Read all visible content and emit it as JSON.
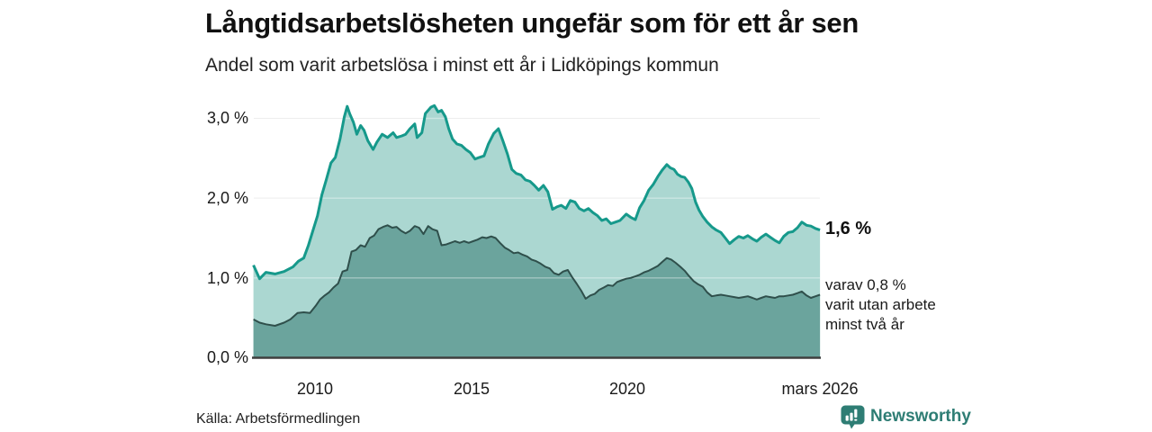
{
  "header": {
    "title": "Långtidsarbetslösheten ungefär som för ett år sen",
    "subtitle": "Andel som varit arbetslösa i minst ett år i Lidköpings kommun"
  },
  "annotations": {
    "series1_end_value": "1,6 %",
    "series2_end_lines": [
      "varav 0,8 %",
      "varit utan arbete",
      "minst två år"
    ]
  },
  "footer": {
    "source": "Källa: Arbetsförmedlingen",
    "brand": "Newsworthy",
    "logo_icon": "bar-chart-bubble-icon"
  },
  "colors": {
    "series1_line": "#16998b",
    "series1_fill": "#abd7d1",
    "series2_line": "#2f4f4b",
    "series2_fill": "#6ba49d",
    "grid": "#e2e2e2",
    "grid_overlay": "rgba(255,255,255,0.38)",
    "baseline": "#3f3f3f",
    "brand_teal": "#2e7d74"
  },
  "chart_data": {
    "type": "area",
    "title": "Långtidsarbetslösheten ungefär som för ett år sen",
    "subtitle": "Andel som varit arbetslösa i minst ett år i Lidköpings kommun",
    "xlabel": "",
    "ylabel": "",
    "xlim": [
      2008.0,
      2026.17
    ],
    "ylim": [
      0,
      3.32
    ],
    "grid": true,
    "legend_position": "right-annotations",
    "x_ticks": [
      {
        "label": "2010",
        "year": 2010
      },
      {
        "label": "2015",
        "year": 2015
      },
      {
        "label": "2020",
        "year": 2020
      },
      {
        "label": "mars 2026",
        "year": 2026.17
      }
    ],
    "y_ticks": [
      {
        "label": "0,0 %",
        "value": 0
      },
      {
        "label": "1,0 %",
        "value": 1
      },
      {
        "label": "2,0 %",
        "value": 2
      },
      {
        "label": "3,0 %",
        "value": 3
      }
    ],
    "series": [
      {
        "name": "Andel arbetslösa minst ett år",
        "end_label": "1,6 %",
        "line_color": "#16998b",
        "fill_color": "#abd7d1",
        "line_width": 3,
        "points": [
          [
            2008.03,
            1.16
          ],
          [
            2008.23,
            0.99
          ],
          [
            2008.43,
            1.07
          ],
          [
            2008.72,
            1.05
          ],
          [
            2009.01,
            1.08
          ],
          [
            2009.3,
            1.14
          ],
          [
            2009.47,
            1.21
          ],
          [
            2009.64,
            1.25
          ],
          [
            2009.79,
            1.41
          ],
          [
            2009.93,
            1.59
          ],
          [
            2010.08,
            1.78
          ],
          [
            2010.22,
            2.04
          ],
          [
            2010.36,
            2.23
          ],
          [
            2010.51,
            2.44
          ],
          [
            2010.65,
            2.51
          ],
          [
            2010.8,
            2.74
          ],
          [
            2010.94,
            3.02
          ],
          [
            2011.03,
            3.15
          ],
          [
            2011.11,
            3.06
          ],
          [
            2011.23,
            2.95
          ],
          [
            2011.34,
            2.8
          ],
          [
            2011.46,
            2.91
          ],
          [
            2011.57,
            2.85
          ],
          [
            2011.69,
            2.72
          ],
          [
            2011.86,
            2.61
          ],
          [
            2011.98,
            2.7
          ],
          [
            2012.15,
            2.8
          ],
          [
            2012.32,
            2.76
          ],
          [
            2012.5,
            2.82
          ],
          [
            2012.61,
            2.76
          ],
          [
            2012.78,
            2.78
          ],
          [
            2012.9,
            2.8
          ],
          [
            2013.04,
            2.87
          ],
          [
            2013.19,
            2.93
          ],
          [
            2013.27,
            2.76
          ],
          [
            2013.42,
            2.82
          ],
          [
            2013.53,
            3.06
          ],
          [
            2013.71,
            3.14
          ],
          [
            2013.82,
            3.16
          ],
          [
            2013.94,
            3.08
          ],
          [
            2014.05,
            3.1
          ],
          [
            2014.17,
            3.02
          ],
          [
            2014.28,
            2.87
          ],
          [
            2014.4,
            2.74
          ],
          [
            2014.54,
            2.68
          ],
          [
            2014.69,
            2.66
          ],
          [
            2014.83,
            2.61
          ],
          [
            2014.97,
            2.57
          ],
          [
            2015.12,
            2.49
          ],
          [
            2015.26,
            2.51
          ],
          [
            2015.41,
            2.53
          ],
          [
            2015.55,
            2.68
          ],
          [
            2015.72,
            2.81
          ],
          [
            2015.87,
            2.87
          ],
          [
            2016.01,
            2.72
          ],
          [
            2016.16,
            2.55
          ],
          [
            2016.3,
            2.36
          ],
          [
            2016.44,
            2.31
          ],
          [
            2016.59,
            2.29
          ],
          [
            2016.73,
            2.23
          ],
          [
            2016.88,
            2.21
          ],
          [
            2017.02,
            2.16
          ],
          [
            2017.16,
            2.1
          ],
          [
            2017.31,
            2.16
          ],
          [
            2017.45,
            2.08
          ],
          [
            2017.6,
            1.86
          ],
          [
            2017.74,
            1.89
          ],
          [
            2017.88,
            1.91
          ],
          [
            2018.03,
            1.87
          ],
          [
            2018.17,
            1.97
          ],
          [
            2018.32,
            1.95
          ],
          [
            2018.46,
            1.87
          ],
          [
            2018.61,
            1.84
          ],
          [
            2018.75,
            1.87
          ],
          [
            2018.89,
            1.82
          ],
          [
            2019.04,
            1.78
          ],
          [
            2019.18,
            1.72
          ],
          [
            2019.32,
            1.74
          ],
          [
            2019.47,
            1.68
          ],
          [
            2019.61,
            1.7
          ],
          [
            2019.76,
            1.72
          ],
          [
            2019.96,
            1.8
          ],
          [
            2020.1,
            1.76
          ],
          [
            2020.25,
            1.73
          ],
          [
            2020.39,
            1.88
          ],
          [
            2020.53,
            1.97
          ],
          [
            2020.68,
            2.1
          ],
          [
            2020.82,
            2.17
          ],
          [
            2020.97,
            2.27
          ],
          [
            2021.11,
            2.35
          ],
          [
            2021.26,
            2.42
          ],
          [
            2021.37,
            2.38
          ],
          [
            2021.49,
            2.36
          ],
          [
            2021.6,
            2.3
          ],
          [
            2021.72,
            2.27
          ],
          [
            2021.83,
            2.26
          ],
          [
            2021.95,
            2.2
          ],
          [
            2022.06,
            2.12
          ],
          [
            2022.18,
            1.95
          ],
          [
            2022.29,
            1.85
          ],
          [
            2022.41,
            1.77
          ],
          [
            2022.55,
            1.7
          ],
          [
            2022.7,
            1.64
          ],
          [
            2022.84,
            1.6
          ],
          [
            2022.99,
            1.57
          ],
          [
            2023.13,
            1.5
          ],
          [
            2023.27,
            1.43
          ],
          [
            2023.42,
            1.48
          ],
          [
            2023.56,
            1.52
          ],
          [
            2023.71,
            1.5
          ],
          [
            2023.85,
            1.53
          ],
          [
            2024,
            1.49
          ],
          [
            2024.14,
            1.46
          ],
          [
            2024.28,
            1.51
          ],
          [
            2024.43,
            1.55
          ],
          [
            2024.57,
            1.51
          ],
          [
            2024.72,
            1.47
          ],
          [
            2024.86,
            1.44
          ],
          [
            2025,
            1.52
          ],
          [
            2025.15,
            1.57
          ],
          [
            2025.29,
            1.58
          ],
          [
            2025.44,
            1.63
          ],
          [
            2025.58,
            1.7
          ],
          [
            2025.73,
            1.66
          ],
          [
            2025.87,
            1.65
          ],
          [
            2026.02,
            1.62
          ],
          [
            2026.16,
            1.6
          ]
        ]
      },
      {
        "name": "varav utan arbete minst två år",
        "end_label": "varav 0,8 % varit utan arbete minst två år",
        "line_color": "#2f4f4b",
        "fill_color": "#6ba49d",
        "line_width": 2,
        "points": [
          [
            2008.03,
            0.48
          ],
          [
            2008.23,
            0.44
          ],
          [
            2008.43,
            0.42
          ],
          [
            2008.72,
            0.4
          ],
          [
            2009.01,
            0.44
          ],
          [
            2009.21,
            0.48
          ],
          [
            2009.44,
            0.56
          ],
          [
            2009.64,
            0.57
          ],
          [
            2009.84,
            0.56
          ],
          [
            2010.02,
            0.65
          ],
          [
            2010.16,
            0.73
          ],
          [
            2010.31,
            0.78
          ],
          [
            2010.45,
            0.82
          ],
          [
            2010.59,
            0.88
          ],
          [
            2010.74,
            0.93
          ],
          [
            2010.88,
            1.08
          ],
          [
            2011.03,
            1.1
          ],
          [
            2011.17,
            1.33
          ],
          [
            2011.31,
            1.35
          ],
          [
            2011.46,
            1.41
          ],
          [
            2011.6,
            1.39
          ],
          [
            2011.75,
            1.5
          ],
          [
            2011.89,
            1.53
          ],
          [
            2012.03,
            1.61
          ],
          [
            2012.18,
            1.64
          ],
          [
            2012.32,
            1.66
          ],
          [
            2012.47,
            1.63
          ],
          [
            2012.61,
            1.64
          ],
          [
            2012.76,
            1.59
          ],
          [
            2012.9,
            1.56
          ],
          [
            2013.04,
            1.59
          ],
          [
            2013.19,
            1.65
          ],
          [
            2013.33,
            1.63
          ],
          [
            2013.47,
            1.55
          ],
          [
            2013.62,
            1.65
          ],
          [
            2013.76,
            1.61
          ],
          [
            2013.91,
            1.59
          ],
          [
            2014.05,
            1.41
          ],
          [
            2014.2,
            1.42
          ],
          [
            2014.34,
            1.44
          ],
          [
            2014.48,
            1.46
          ],
          [
            2014.63,
            1.44
          ],
          [
            2014.77,
            1.46
          ],
          [
            2014.92,
            1.44
          ],
          [
            2015.06,
            1.46
          ],
          [
            2015.2,
            1.48
          ],
          [
            2015.35,
            1.51
          ],
          [
            2015.49,
            1.5
          ],
          [
            2015.64,
            1.52
          ],
          [
            2015.78,
            1.5
          ],
          [
            2015.92,
            1.44
          ],
          [
            2016.07,
            1.38
          ],
          [
            2016.21,
            1.35
          ],
          [
            2016.36,
            1.31
          ],
          [
            2016.5,
            1.32
          ],
          [
            2016.65,
            1.29
          ],
          [
            2016.79,
            1.27
          ],
          [
            2016.93,
            1.23
          ],
          [
            2017.08,
            1.21
          ],
          [
            2017.22,
            1.18
          ],
          [
            2017.37,
            1.14
          ],
          [
            2017.51,
            1.12
          ],
          [
            2017.65,
            1.06
          ],
          [
            2017.8,
            1.04
          ],
          [
            2017.94,
            1.08
          ],
          [
            2018.09,
            1.1
          ],
          [
            2018.23,
            1.01
          ],
          [
            2018.37,
            0.93
          ],
          [
            2018.52,
            0.84
          ],
          [
            2018.66,
            0.74
          ],
          [
            2018.81,
            0.78
          ],
          [
            2018.95,
            0.8
          ],
          [
            2019.09,
            0.85
          ],
          [
            2019.24,
            0.88
          ],
          [
            2019.38,
            0.91
          ],
          [
            2019.53,
            0.9
          ],
          [
            2019.67,
            0.95
          ],
          [
            2019.81,
            0.97
          ],
          [
            2019.96,
            0.99
          ],
          [
            2020.1,
            1
          ],
          [
            2020.25,
            1.02
          ],
          [
            2020.39,
            1.04
          ],
          [
            2020.53,
            1.07
          ],
          [
            2020.68,
            1.09
          ],
          [
            2020.82,
            1.12
          ],
          [
            2020.97,
            1.15
          ],
          [
            2021.11,
            1.2
          ],
          [
            2021.26,
            1.25
          ],
          [
            2021.4,
            1.23
          ],
          [
            2021.54,
            1.19
          ],
          [
            2021.69,
            1.14
          ],
          [
            2021.83,
            1.09
          ],
          [
            2021.98,
            1.02
          ],
          [
            2022.12,
            0.96
          ],
          [
            2022.26,
            0.92
          ],
          [
            2022.41,
            0.89
          ],
          [
            2022.55,
            0.82
          ],
          [
            2022.7,
            0.77
          ],
          [
            2022.84,
            0.78
          ],
          [
            2022.99,
            0.79
          ],
          [
            2023.13,
            0.78
          ],
          [
            2023.27,
            0.77
          ],
          [
            2023.42,
            0.76
          ],
          [
            2023.56,
            0.75
          ],
          [
            2023.71,
            0.76
          ],
          [
            2023.85,
            0.77
          ],
          [
            2024,
            0.75
          ],
          [
            2024.14,
            0.73
          ],
          [
            2024.28,
            0.75
          ],
          [
            2024.43,
            0.77
          ],
          [
            2024.57,
            0.76
          ],
          [
            2024.72,
            0.75
          ],
          [
            2024.86,
            0.77
          ],
          [
            2025,
            0.77
          ],
          [
            2025.15,
            0.78
          ],
          [
            2025.29,
            0.79
          ],
          [
            2025.44,
            0.81
          ],
          [
            2025.58,
            0.83
          ],
          [
            2025.73,
            0.78
          ],
          [
            2025.87,
            0.75
          ],
          [
            2026.02,
            0.77
          ],
          [
            2026.16,
            0.79
          ]
        ]
      }
    ]
  }
}
